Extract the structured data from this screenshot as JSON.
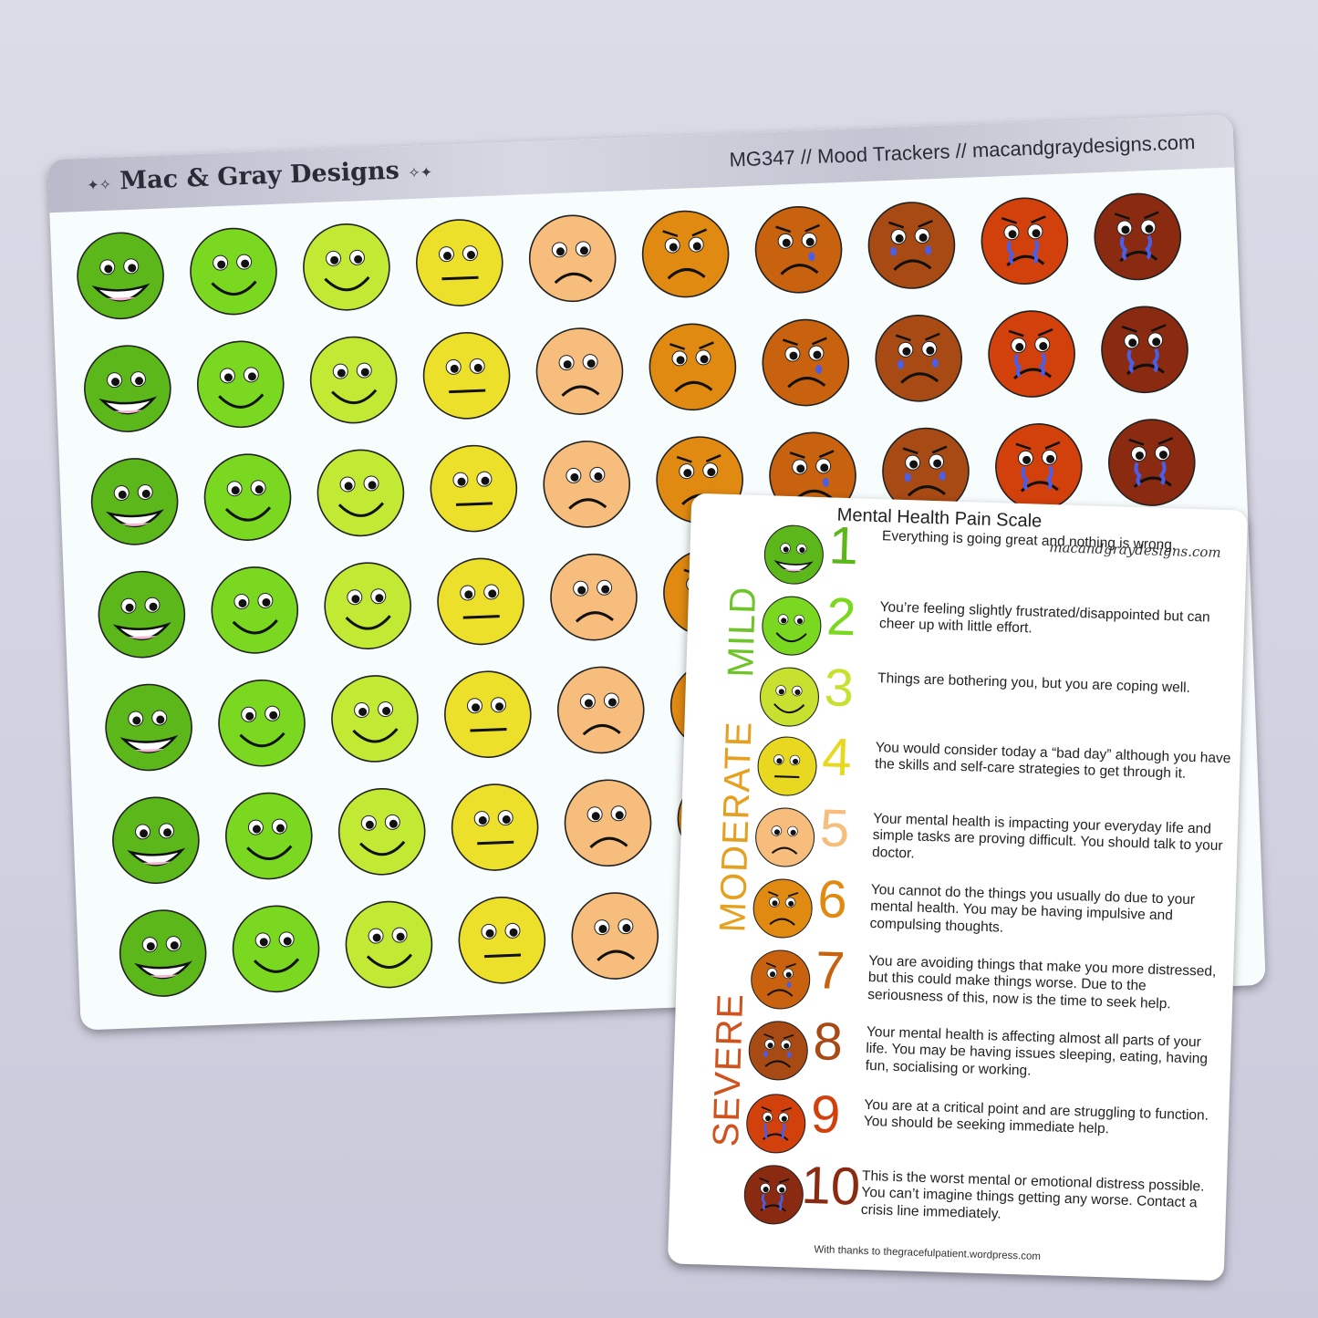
{
  "sheet": {
    "brand": "Mac & Gray Designs",
    "product_line": "MG347 // Mood Trackers // macandgraydesigns.com",
    "rows": 7,
    "faces": [
      {
        "color": "#5cb81a",
        "mood": "very-happy"
      },
      {
        "color": "#7ad820",
        "mood": "happy"
      },
      {
        "color": "#c2ea35",
        "mood": "content"
      },
      {
        "color": "#ede02a",
        "mood": "neutral"
      },
      {
        "color": "#f6bd7c",
        "mood": "sad"
      },
      {
        "color": "#e08a12",
        "mood": "upset"
      },
      {
        "color": "#c8620e",
        "mood": "upset-tear"
      },
      {
        "color": "#a84a14",
        "mood": "crying"
      },
      {
        "color": "#d2400c",
        "mood": "angry-crying"
      },
      {
        "color": "#8a2a10",
        "mood": "distraught"
      }
    ]
  },
  "card": {
    "title": "Mental Health Pain Scale",
    "url": "macandgraydesigns.com",
    "categories": [
      {
        "label": "MILD",
        "color": "#6fc42a"
      },
      {
        "label": "MODERATE",
        "color": "#e6a020"
      },
      {
        "label": "SEVERE",
        "color": "#d0521c"
      }
    ],
    "levels": [
      {
        "number": "1",
        "color": "#5cb81a",
        "text": "Everything is going great and nothing is wrong."
      },
      {
        "number": "2",
        "color": "#7ad820",
        "text": "You’re feeling slightly frustrated/disappointed but can cheer up with little effort."
      },
      {
        "number": "3",
        "color": "#c8e030",
        "text": "Things are bothering you, but you are coping well."
      },
      {
        "number": "4",
        "color": "#e8d820",
        "text": "You would consider today a “bad day” although you have the skills and self-care strategies to get through it."
      },
      {
        "number": "5",
        "color": "#f6bd7c",
        "text": "Your mental health is impacting your everyday life and simple tasks are proving difficult. You should talk to your doctor."
      },
      {
        "number": "6",
        "color": "#e08a12",
        "text": "You cannot do the things you usually do due to your mental health. You may be having impulsive and compulsing thoughts."
      },
      {
        "number": "7",
        "color": "#c8620e",
        "text": "You are avoiding things that make you more distressed, but this could make things worse. Due to the seriousness of this, now is the time to seek help."
      },
      {
        "number": "8",
        "color": "#a84a14",
        "text": "Your mental health is affecting almost all parts of your life. You may be having issues sleeping, eating, having fun, socialising or working."
      },
      {
        "number": "9",
        "color": "#d2400c",
        "text": "You are at a critical point and are struggling to function. You should be seeking immediate help."
      },
      {
        "number": "10",
        "color": "#8a2a10",
        "text": "This is the worst mental or emotional distress possible. You can’t imagine things getting any worse. Contact a crisis line immediately."
      }
    ],
    "credit": "With thanks to thegracefulpatient.wordpress.com"
  }
}
